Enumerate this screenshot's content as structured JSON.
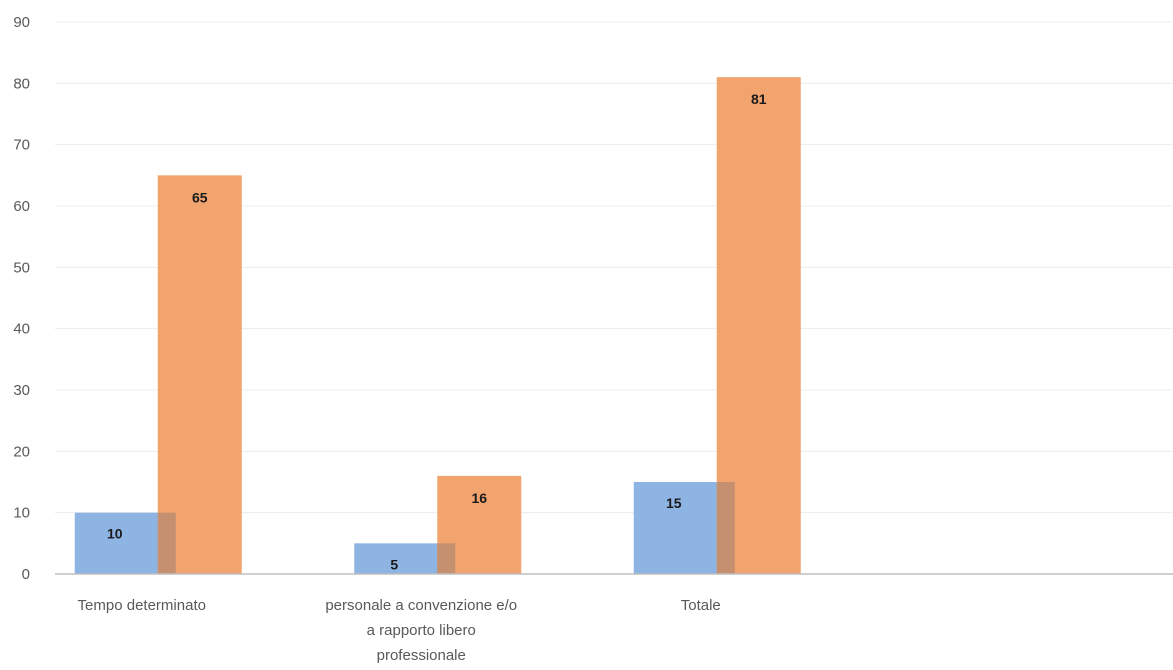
{
  "chart_data": {
    "type": "bar",
    "categories": [
      [
        "Tempo determinato"
      ],
      [
        "personale a convenzione e/o",
        "a rapporto libero",
        "professionale"
      ],
      [
        "Totale"
      ],
      [
        ""
      ]
    ],
    "series": [
      {
        "values": [
          10,
          5,
          15,
          null
        ],
        "color": "#8db4e2"
      },
      {
        "values": [
          65,
          16,
          81,
          null
        ],
        "color": "#f2a46f"
      }
    ],
    "ylim": [
      0,
      90
    ],
    "yticks": [
      0,
      10,
      20,
      30,
      40,
      50,
      60,
      70,
      80,
      90
    ],
    "grid": true,
    "data_labels": true,
    "overlap_color": "#c4906f"
  }
}
